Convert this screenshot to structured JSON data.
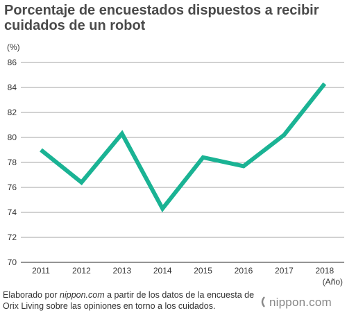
{
  "title": "Porcentaje de encuestados dispuestos a recibir cuidados de un robot",
  "unit_label": "(%)",
  "source": {
    "prefix": "Elaborado por ",
    "site": "nippon.com",
    "suffix": " a partir de los datos de la encuesta de Orix Living sobre las opiniones en torno a los cuidados."
  },
  "logo": {
    "text": "nippon.com",
    "icon": "nippon-logo-icon"
  },
  "colors": {
    "line": "#1ab394",
    "grid": "#888888",
    "text": "#333333"
  },
  "chart_data": {
    "type": "line",
    "title": "Porcentaje de encuestados dispuestos a recibir cuidados de un robot",
    "xlabel": "(Año)",
    "ylabel": "(%)",
    "categories": [
      "2011",
      "2012",
      "2013",
      "2014",
      "2015",
      "2016",
      "2017",
      "2018"
    ],
    "series": [
      {
        "values": [
          79.0,
          76.4,
          80.3,
          74.3,
          78.4,
          77.7,
          80.2,
          84.3
        ]
      }
    ],
    "ylim": [
      70,
      86
    ],
    "yticks": [
      "70",
      "72",
      "74",
      "76",
      "78",
      "80",
      "82",
      "84",
      "86"
    ],
    "grid": true,
    "legend": "none"
  }
}
